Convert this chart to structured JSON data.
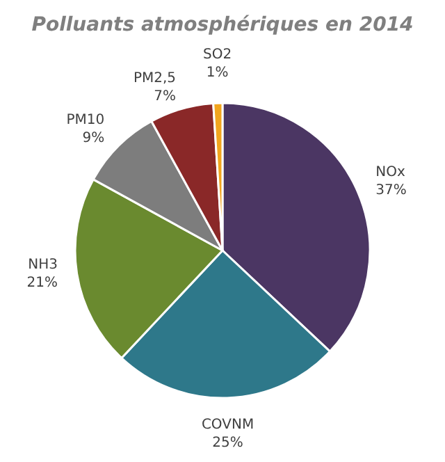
{
  "chart_data": {
    "type": "pie",
    "title": "Polluants atmosphériques en 2014",
    "categories": [
      "NOx",
      "COVNM",
      "NH3",
      "PM10",
      "PM2,5",
      "SO2"
    ],
    "values": [
      37,
      25,
      21,
      9,
      7,
      1
    ],
    "value_labels": [
      "37%",
      "25%",
      "21%",
      "9%",
      "7%",
      "1%"
    ],
    "colors": [
      "#4b3663",
      "#2e788a",
      "#6a8a2f",
      "#7d7d7d",
      "#8a2828",
      "#f2a51e"
    ]
  }
}
